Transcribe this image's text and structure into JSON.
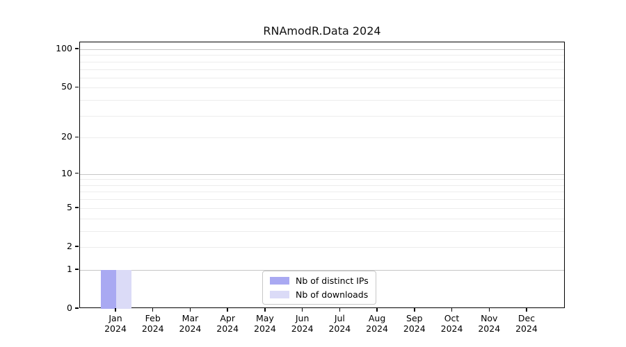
{
  "chart_data": {
    "type": "bar",
    "title": "RNAmodR.Data 2024",
    "categories": [
      "Jan",
      "Feb",
      "Mar",
      "Apr",
      "May",
      "Jun",
      "Jul",
      "Aug",
      "Sep",
      "Oct",
      "Nov",
      "Dec"
    ],
    "year_label": "2024",
    "series": [
      {
        "name": "Nb of distinct IPs",
        "color": "#a9a9f2",
        "values": [
          1,
          0,
          0,
          0,
          0,
          0,
          0,
          0,
          0,
          0,
          0,
          0
        ]
      },
      {
        "name": "Nb of downloads",
        "color": "#dbdbf7",
        "values": [
          1,
          0,
          0,
          0,
          0,
          0,
          0,
          0,
          0,
          0,
          0,
          0
        ]
      }
    ],
    "ytick_labels": [
      "100",
      "50",
      "20",
      "10",
      "5",
      "2",
      "1",
      "0"
    ],
    "ytick_values": [
      100,
      50,
      20,
      10,
      5,
      2,
      1,
      0
    ],
    "major_gridlines": [
      1,
      10,
      100
    ],
    "minor_gridlines": [
      2,
      3,
      4,
      5,
      6,
      7,
      8,
      9,
      20,
      30,
      40,
      50,
      60,
      70,
      80,
      90
    ],
    "scale": "log1p",
    "ylim": [
      0,
      113
    ],
    "grid": "horizontal",
    "legend_position": "lower center"
  },
  "colors": {
    "axis": "#000000",
    "major_grid": "#c6c6c6",
    "minor_grid": "#ececec",
    "legend_border": "#c8c8c8",
    "background": "#ffffff"
  }
}
